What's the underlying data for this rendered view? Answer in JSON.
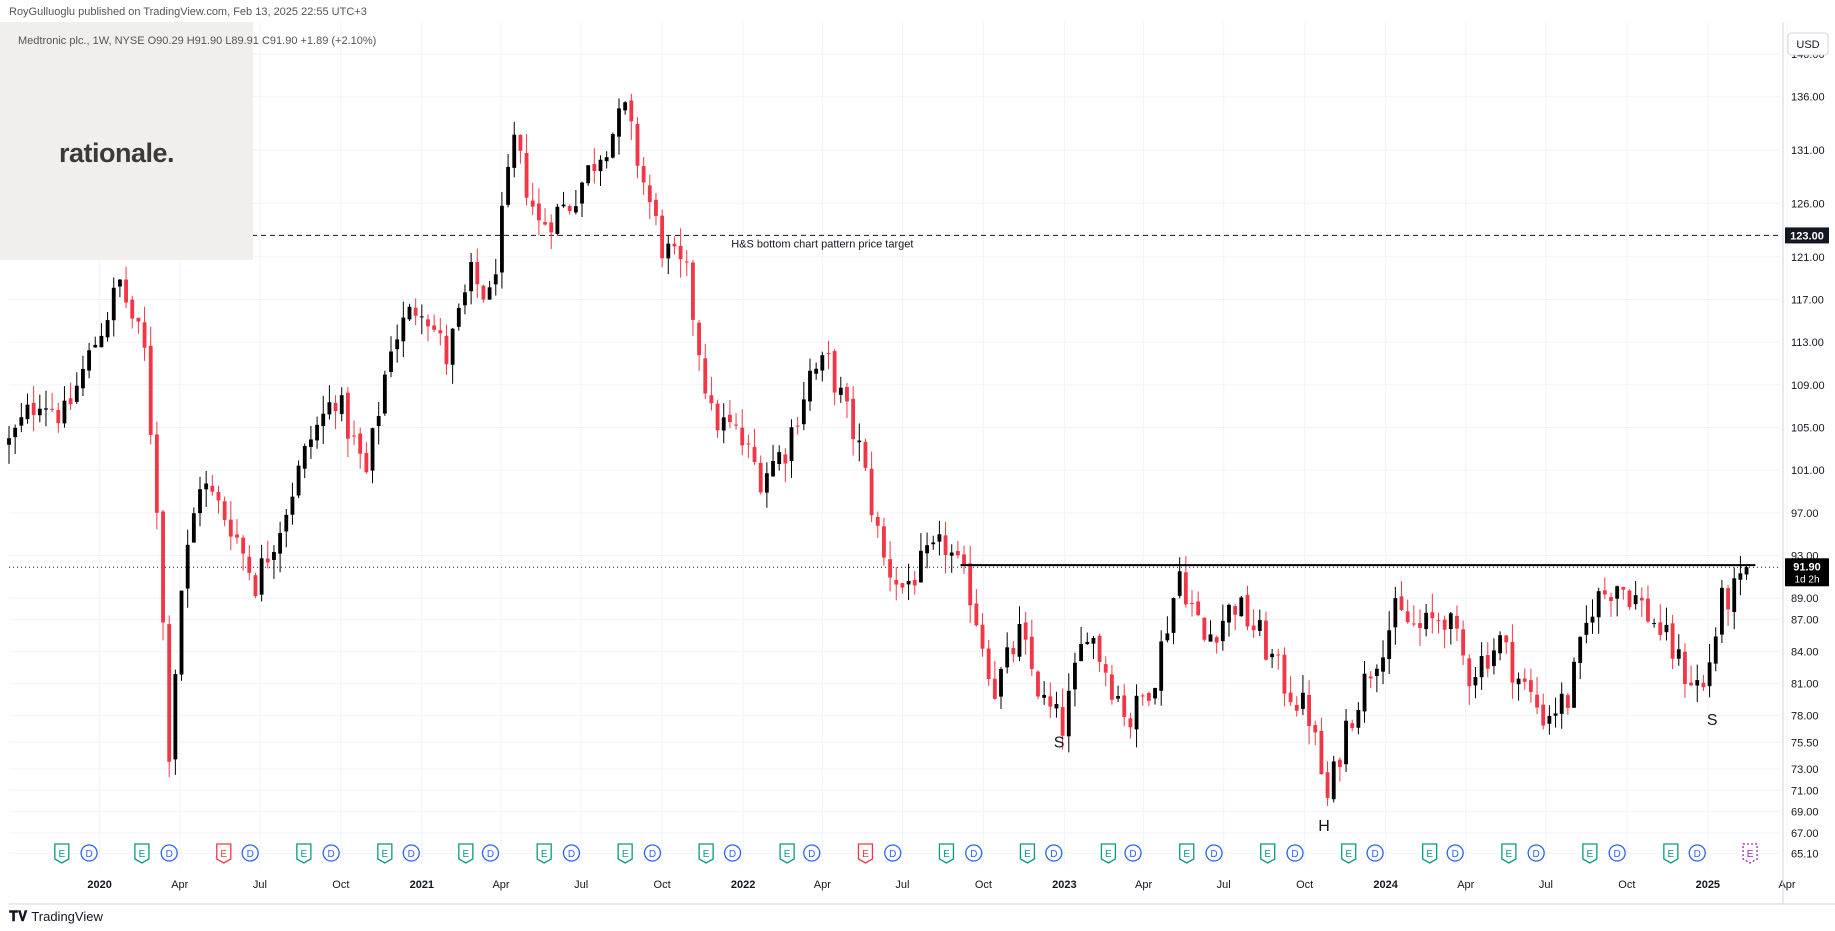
{
  "header": {
    "published_by": "RoyGulluoglu published on TradingView.com, Feb 13, 2025 22:55 UTC+3",
    "legend": "Medtronic plc., 1W, NYSE  O90.29  H91.90  L89.91  C91.90  +1.89 (+2.10%)"
  },
  "logo": {
    "text": "rationale."
  },
  "footer": {
    "icon": "tradingview-logo-icon",
    "brand": "TradingView"
  },
  "colors": {
    "up": "#000000",
    "down": "#f23645",
    "grid": "#f0f3fa",
    "axis_text": "#131722"
  },
  "chart_data": {
    "type": "candlestick",
    "symbol": "Medtronic plc.",
    "interval": "1W",
    "exchange": "NYSE",
    "currency": "USD",
    "last_price": 91.9,
    "countdown": "1d 2h",
    "ylim": [
      64,
      143
    ],
    "y_ticks": [
      65.1,
      67.0,
      69.0,
      71.0,
      73.0,
      75.5,
      78.0,
      81.0,
      84.0,
      87.0,
      89.0,
      93.0,
      97.0,
      101.0,
      105.0,
      109.0,
      113.0,
      117.0,
      121.0,
      126.0,
      131.0,
      136.0,
      140.0
    ],
    "y_tick_labels": [
      "65.10",
      "67.00",
      "69.00",
      "71.00",
      "73.00",
      "75.50",
      "78.00",
      "81.00",
      "84.00",
      "87.00",
      "89.00",
      "93.00",
      "97.00",
      "101.00",
      "105.00",
      "109.00",
      "113.00",
      "117.00",
      "121.00",
      "126.00",
      "131.00",
      "136.00",
      "140.00"
    ],
    "x_ticks": [
      {
        "label": "2020",
        "date": "2020-01-01",
        "bold": true
      },
      {
        "label": "Apr",
        "date": "2020-04-01",
        "bold": false
      },
      {
        "label": "Jul",
        "date": "2020-07-01",
        "bold": false
      },
      {
        "label": "Oct",
        "date": "2020-10-01",
        "bold": false
      },
      {
        "label": "2021",
        "date": "2021-01-01",
        "bold": true
      },
      {
        "label": "Apr",
        "date": "2021-04-01",
        "bold": false
      },
      {
        "label": "Jul",
        "date": "2021-07-01",
        "bold": false
      },
      {
        "label": "Oct",
        "date": "2021-10-01",
        "bold": false
      },
      {
        "label": "2022",
        "date": "2022-01-01",
        "bold": true
      },
      {
        "label": "Apr",
        "date": "2022-04-01",
        "bold": false
      },
      {
        "label": "Jul",
        "date": "2022-07-01",
        "bold": false
      },
      {
        "label": "Oct",
        "date": "2022-10-01",
        "bold": false
      },
      {
        "label": "2023",
        "date": "2023-01-01",
        "bold": true
      },
      {
        "label": "Apr",
        "date": "2023-04-01",
        "bold": false
      },
      {
        "label": "Jul",
        "date": "2023-07-01",
        "bold": false
      },
      {
        "label": "Oct",
        "date": "2023-10-01",
        "bold": false
      },
      {
        "label": "2024",
        "date": "2024-01-01",
        "bold": true
      },
      {
        "label": "Apr",
        "date": "2024-04-01",
        "bold": false
      },
      {
        "label": "Jul",
        "date": "2024-07-01",
        "bold": false
      },
      {
        "label": "Oct",
        "date": "2024-10-01",
        "bold": false
      },
      {
        "label": "2025",
        "date": "2025-01-01",
        "bold": true
      },
      {
        "label": "Apr",
        "date": "2025-04-01",
        "bold": false
      }
    ],
    "xlim": [
      "2019-09-20",
      "2025-03-24"
    ],
    "price_target": {
      "value": 123.0,
      "label": "123.00",
      "text": "H&S bottom chart pattern price target",
      "start_date": "2019-09-20"
    },
    "neckline": {
      "value": 92.1,
      "start_date": "2022-09-05",
      "end_date": "2025-02-24"
    },
    "pattern_labels": [
      {
        "text": "S",
        "date": "2022-12-26",
        "price": 76.5
      },
      {
        "text": "H",
        "date": "2023-10-23",
        "price": 68.7
      },
      {
        "text": "S",
        "date": "2025-01-06",
        "price": 78.6
      }
    ],
    "events": [
      {
        "kind": "E",
        "date": "2019-11-19"
      },
      {
        "kind": "D",
        "date": "2019-12-20"
      },
      {
        "kind": "E",
        "date": "2020-02-18"
      },
      {
        "kind": "D",
        "date": "2020-03-20"
      },
      {
        "kind": "E",
        "date": "2020-05-21",
        "negative": true
      },
      {
        "kind": "D",
        "date": "2020-06-20"
      },
      {
        "kind": "E",
        "date": "2020-08-20"
      },
      {
        "kind": "D",
        "date": "2020-09-20"
      },
      {
        "kind": "E",
        "date": "2020-11-20"
      },
      {
        "kind": "D",
        "date": "2020-12-20"
      },
      {
        "kind": "E",
        "date": "2021-02-20"
      },
      {
        "kind": "D",
        "date": "2021-03-20"
      },
      {
        "kind": "E",
        "date": "2021-05-20"
      },
      {
        "kind": "D",
        "date": "2021-06-20"
      },
      {
        "kind": "E",
        "date": "2021-08-20"
      },
      {
        "kind": "D",
        "date": "2021-09-20"
      },
      {
        "kind": "E",
        "date": "2021-11-20"
      },
      {
        "kind": "D",
        "date": "2021-12-20"
      },
      {
        "kind": "E",
        "date": "2022-02-20"
      },
      {
        "kind": "D",
        "date": "2022-03-20"
      },
      {
        "kind": "E",
        "date": "2022-05-20",
        "negative": true
      },
      {
        "kind": "D",
        "date": "2022-06-20"
      },
      {
        "kind": "E",
        "date": "2022-08-20"
      },
      {
        "kind": "D",
        "date": "2022-09-20"
      },
      {
        "kind": "E",
        "date": "2022-11-20"
      },
      {
        "kind": "D",
        "date": "2022-12-20"
      },
      {
        "kind": "E",
        "date": "2023-02-20"
      },
      {
        "kind": "D",
        "date": "2023-03-20"
      },
      {
        "kind": "E",
        "date": "2023-05-20"
      },
      {
        "kind": "D",
        "date": "2023-06-20"
      },
      {
        "kind": "E",
        "date": "2023-08-20"
      },
      {
        "kind": "D",
        "date": "2023-09-20"
      },
      {
        "kind": "E",
        "date": "2023-11-20"
      },
      {
        "kind": "D",
        "date": "2023-12-20"
      },
      {
        "kind": "E",
        "date": "2024-02-20"
      },
      {
        "kind": "D",
        "date": "2024-03-20"
      },
      {
        "kind": "E",
        "date": "2024-05-20"
      },
      {
        "kind": "D",
        "date": "2024-06-20"
      },
      {
        "kind": "E",
        "date": "2024-08-20"
      },
      {
        "kind": "D",
        "date": "2024-09-20"
      },
      {
        "kind": "E",
        "date": "2024-11-20"
      },
      {
        "kind": "D",
        "date": "2024-12-20"
      },
      {
        "kind": "E",
        "date": "2025-02-18",
        "upcoming": true
      }
    ],
    "anchors": [
      [
        "2019-09-20",
        103.5
      ],
      [
        "2019-10-25",
        108.0
      ],
      [
        "2019-11-22",
        106.0
      ],
      [
        "2019-12-27",
        113.0
      ],
      [
        "2020-01-24",
        118.5
      ],
      [
        "2020-02-21",
        112.0
      ],
      [
        "2020-03-06",
        98.0
      ],
      [
        "2020-03-20",
        75.0
      ],
      [
        "2020-04-03",
        90.0
      ],
      [
        "2020-04-24",
        100.0
      ],
      [
        "2020-05-29",
        96.0
      ],
      [
        "2020-06-26",
        90.5
      ],
      [
        "2020-07-24",
        96.0
      ],
      [
        "2020-08-28",
        104.0
      ],
      [
        "2020-09-25",
        108.0
      ],
      [
        "2020-10-30",
        100.5
      ],
      [
        "2020-11-27",
        113.0
      ],
      [
        "2020-12-31",
        117.0
      ],
      [
        "2021-01-29",
        111.5
      ],
      [
        "2021-02-26",
        119.0
      ],
      [
        "2021-03-19",
        117.0
      ],
      [
        "2021-04-16",
        131.5
      ],
      [
        "2021-05-14",
        124.0
      ],
      [
        "2021-06-18",
        126.0
      ],
      [
        "2021-07-23",
        131.0
      ],
      [
        "2021-08-20",
        134.5
      ],
      [
        "2021-09-10",
        128.0
      ],
      [
        "2021-10-01",
        122.0
      ],
      [
        "2021-10-29",
        119.0
      ],
      [
        "2021-11-26",
        106.0
      ],
      [
        "2021-12-24",
        104.5
      ],
      [
        "2022-01-21",
        100.5
      ],
      [
        "2022-02-18",
        103.0
      ],
      [
        "2022-03-18",
        110.0
      ],
      [
        "2022-04-08",
        111.0
      ],
      [
        "2022-05-13",
        103.0
      ],
      [
        "2022-06-10",
        92.5
      ],
      [
        "2022-07-01",
        90.0
      ],
      [
        "2022-07-29",
        92.5
      ],
      [
        "2022-08-19",
        94.0
      ],
      [
        "2022-09-16",
        89.5
      ],
      [
        "2022-10-14",
        80.5
      ],
      [
        "2022-11-11",
        85.5
      ],
      [
        "2022-12-09",
        79.0
      ],
      [
        "2022-12-30",
        77.0
      ],
      [
        "2023-01-27",
        86.5
      ],
      [
        "2023-02-24",
        81.0
      ],
      [
        "2023-03-17",
        77.5
      ],
      [
        "2023-04-14",
        82.0
      ],
      [
        "2023-05-12",
        91.5
      ],
      [
        "2023-06-09",
        85.0
      ],
      [
        "2023-07-14",
        88.5
      ],
      [
        "2023-08-11",
        85.5
      ],
      [
        "2023-09-08",
        81.0
      ],
      [
        "2023-10-06",
        78.0
      ],
      [
        "2023-10-27",
        70.0
      ],
      [
        "2023-11-17",
        77.0
      ],
      [
        "2023-12-15",
        82.5
      ],
      [
        "2024-01-12",
        87.5
      ],
      [
        "2024-02-09",
        86.0
      ],
      [
        "2024-03-08",
        87.5
      ],
      [
        "2024-04-05",
        82.0
      ],
      [
        "2024-05-10",
        85.0
      ],
      [
        "2024-05-31",
        81.5
      ],
      [
        "2024-06-28",
        78.0
      ],
      [
        "2024-07-26",
        79.5
      ],
      [
        "2024-08-23",
        88.5
      ],
      [
        "2024-09-20",
        90.5
      ],
      [
        "2024-10-11",
        89.0
      ],
      [
        "2024-11-08",
        86.0
      ],
      [
        "2024-12-06",
        82.0
      ],
      [
        "2024-12-27",
        80.5
      ],
      [
        "2025-01-17",
        88.5
      ],
      [
        "2025-02-07",
        90.0
      ],
      [
        "2025-02-14",
        91.9
      ]
    ]
  }
}
